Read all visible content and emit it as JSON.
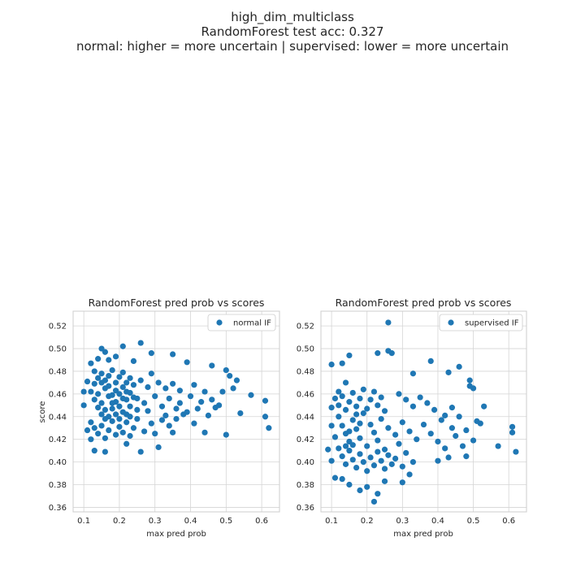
{
  "suptitle": {
    "line1": "high_dim_multiclass",
    "line2": "RandomForest test acc: 0.327",
    "line3": "normal: higher = more uncertain | supervised: lower = more uncertain"
  },
  "colors": {
    "points": "#1f77b4",
    "grid": "#d5d5d5",
    "frame": "#cccccc",
    "text": "#262626"
  },
  "chart_data": [
    {
      "type": "scatter",
      "title": "RandomForest pred prob vs scores",
      "xlabel": "max pred prob",
      "ylabel": "score",
      "xlim": [
        0.07,
        0.65
      ],
      "ylim": [
        0.356,
        0.533
      ],
      "xticks": [
        0.1,
        0.2,
        0.3,
        0.4,
        0.5,
        0.6
      ],
      "xtick_labels": [
        "0.1",
        "0.2",
        "0.3",
        "0.4",
        "0.5",
        "0.6"
      ],
      "yticks": [
        0.36,
        0.38,
        0.4,
        0.42,
        0.44,
        0.46,
        0.48,
        0.5,
        0.52
      ],
      "ytick_labels": [
        "0.36",
        "0.38",
        "0.40",
        "0.42",
        "0.44",
        "0.46",
        "0.48",
        "0.50",
        "0.52"
      ],
      "grid": true,
      "legend": {
        "label": "normal IF",
        "placement": "top-right"
      },
      "series": [
        {
          "name": "normal IF",
          "points": [
            [
              0.11,
              0.471
            ],
            [
              0.12,
              0.487
            ],
            [
              0.13,
              0.48
            ],
            [
              0.14,
              0.491
            ],
            [
              0.15,
              0.5
            ],
            [
              0.16,
              0.497
            ],
            [
              0.17,
              0.49
            ],
            [
              0.19,
              0.493
            ],
            [
              0.21,
              0.502
            ],
            [
              0.26,
              0.505
            ],
            [
              0.24,
              0.489
            ],
            [
              0.29,
              0.496
            ],
            [
              0.35,
              0.495
            ],
            [
              0.39,
              0.488
            ],
            [
              0.46,
              0.485
            ],
            [
              0.5,
              0.481
            ],
            [
              0.51,
              0.476
            ],
            [
              0.53,
              0.472
            ],
            [
              0.52,
              0.465
            ],
            [
              0.49,
              0.462
            ],
            [
              0.57,
              0.459
            ],
            [
              0.61,
              0.454
            ],
            [
              0.62,
              0.43
            ],
            [
              0.61,
              0.44
            ],
            [
              0.54,
              0.443
            ],
            [
              0.5,
              0.424
            ],
            [
              0.44,
              0.426
            ],
            [
              0.41,
              0.434
            ],
            [
              0.38,
              0.442
            ],
            [
              0.35,
              0.426
            ],
            [
              0.31,
              0.413
            ],
            [
              0.26,
              0.409
            ],
            [
              0.22,
              0.416
            ],
            [
              0.16,
              0.409
            ],
            [
              0.13,
              0.41
            ],
            [
              0.12,
              0.42
            ],
            [
              0.11,
              0.428
            ],
            [
              0.1,
              0.45
            ],
            [
              0.1,
              0.462
            ],
            [
              0.12,
              0.462
            ],
            [
              0.13,
              0.455
            ],
            [
              0.14,
              0.448
            ],
            [
              0.15,
              0.442
            ],
            [
              0.16,
              0.465
            ],
            [
              0.17,
              0.458
            ],
            [
              0.18,
              0.447
            ],
            [
              0.19,
              0.453
            ],
            [
              0.2,
              0.46
            ],
            [
              0.21,
              0.444
            ],
            [
              0.22,
              0.455
            ],
            [
              0.23,
              0.449
            ],
            [
              0.24,
              0.457
            ],
            [
              0.25,
              0.446
            ],
            [
              0.27,
              0.452
            ],
            [
              0.28,
              0.445
            ],
            [
              0.3,
              0.458
            ],
            [
              0.32,
              0.449
            ],
            [
              0.33,
              0.441
            ],
            [
              0.34,
              0.456
            ],
            [
              0.36,
              0.447
            ],
            [
              0.37,
              0.452
            ],
            [
              0.39,
              0.444
            ],
            [
              0.4,
              0.458
            ],
            [
              0.42,
              0.447
            ],
            [
              0.43,
              0.453
            ],
            [
              0.45,
              0.441
            ],
            [
              0.46,
              0.455
            ],
            [
              0.47,
              0.448
            ],
            [
              0.48,
              0.45
            ],
            [
              0.44,
              0.462
            ],
            [
              0.13,
              0.469
            ],
            [
              0.14,
              0.474
            ],
            [
              0.15,
              0.478
            ],
            [
              0.16,
              0.472
            ],
            [
              0.17,
              0.476
            ],
            [
              0.18,
              0.481
            ],
            [
              0.19,
              0.47
            ],
            [
              0.2,
              0.475
            ],
            [
              0.21,
              0.479
            ],
            [
              0.22,
              0.47
            ],
            [
              0.23,
              0.474
            ],
            [
              0.24,
              0.468
            ],
            [
              0.26,
              0.472
            ],
            [
              0.28,
              0.466
            ],
            [
              0.29,
              0.478
            ],
            [
              0.31,
              0.47
            ],
            [
              0.33,
              0.465
            ],
            [
              0.35,
              0.469
            ],
            [
              0.37,
              0.463
            ],
            [
              0.41,
              0.468
            ],
            [
              0.12,
              0.435
            ],
            [
              0.13,
              0.43
            ],
            [
              0.14,
              0.425
            ],
            [
              0.15,
              0.432
            ],
            [
              0.16,
              0.421
            ],
            [
              0.17,
              0.428
            ],
            [
              0.18,
              0.436
            ],
            [
              0.19,
              0.424
            ],
            [
              0.2,
              0.431
            ],
            [
              0.21,
              0.426
            ],
            [
              0.22,
              0.435
            ],
            [
              0.23,
              0.423
            ],
            [
              0.24,
              0.43
            ],
            [
              0.25,
              0.438
            ],
            [
              0.27,
              0.427
            ],
            [
              0.29,
              0.434
            ],
            [
              0.3,
              0.425
            ],
            [
              0.32,
              0.437
            ],
            [
              0.34,
              0.432
            ],
            [
              0.36,
              0.438
            ],
            [
              0.14,
              0.46
            ],
            [
              0.15,
              0.452
            ],
            [
              0.16,
              0.446
            ],
            [
              0.17,
              0.44
            ],
            [
              0.18,
              0.459
            ],
            [
              0.19,
              0.442
            ],
            [
              0.2,
              0.449
            ],
            [
              0.21,
              0.456
            ],
            [
              0.22,
              0.462
            ],
            [
              0.23,
              0.44
            ],
            [
              0.15,
              0.47
            ],
            [
              0.16,
              0.438
            ],
            [
              0.17,
              0.467
            ],
            [
              0.18,
              0.452
            ],
            [
              0.19,
              0.463
            ],
            [
              0.2,
              0.438
            ],
            [
              0.21,
              0.466
            ],
            [
              0.22,
              0.442
            ],
            [
              0.23,
              0.461
            ],
            [
              0.25,
              0.456
            ]
          ]
        }
      ]
    },
    {
      "type": "scatter",
      "title": "RandomForest pred prob vs scores",
      "xlabel": "max pred prob",
      "ylabel": "score",
      "xlim": [
        0.07,
        0.65
      ],
      "ylim": [
        0.356,
        0.533
      ],
      "xticks": [
        0.1,
        0.2,
        0.3,
        0.4,
        0.5,
        0.6
      ],
      "xtick_labels": [
        "0.1",
        "0.2",
        "0.3",
        "0.4",
        "0.5",
        "0.6"
      ],
      "yticks": [
        0.36,
        0.38,
        0.4,
        0.42,
        0.44,
        0.46,
        0.48,
        0.5,
        0.52
      ],
      "ytick_labels": [
        "0.36",
        "0.38",
        "0.40",
        "0.42",
        "0.44",
        "0.46",
        "0.48",
        "0.50",
        "0.52"
      ],
      "grid": true,
      "legend": {
        "label": "supervised IF",
        "placement": "top-right"
      },
      "series": [
        {
          "name": "supervised IF",
          "points": [
            [
              0.26,
              0.523
            ],
            [
              0.26,
              0.498
            ],
            [
              0.27,
              0.496
            ],
            [
              0.23,
              0.496
            ],
            [
              0.15,
              0.494
            ],
            [
              0.13,
              0.487
            ],
            [
              0.1,
              0.486
            ],
            [
              0.38,
              0.489
            ],
            [
              0.33,
              0.478
            ],
            [
              0.43,
              0.479
            ],
            [
              0.46,
              0.484
            ],
            [
              0.49,
              0.472
            ],
            [
              0.49,
              0.467
            ],
            [
              0.5,
              0.465
            ],
            [
              0.53,
              0.449
            ],
            [
              0.52,
              0.434
            ],
            [
              0.61,
              0.431
            ],
            [
              0.61,
              0.426
            ],
            [
              0.62,
              0.409
            ],
            [
              0.57,
              0.414
            ],
            [
              0.48,
              0.405
            ],
            [
              0.43,
              0.404
            ],
            [
              0.4,
              0.401
            ],
            [
              0.32,
              0.389
            ],
            [
              0.3,
              0.382
            ],
            [
              0.25,
              0.383
            ],
            [
              0.23,
              0.372
            ],
            [
              0.22,
              0.365
            ],
            [
              0.2,
              0.378
            ],
            [
              0.18,
              0.375
            ],
            [
              0.15,
              0.38
            ],
            [
              0.13,
              0.385
            ],
            [
              0.11,
              0.386
            ],
            [
              0.1,
              0.401
            ],
            [
              0.09,
              0.411
            ],
            [
              0.1,
              0.432
            ],
            [
              0.1,
              0.448
            ],
            [
              0.11,
              0.456
            ],
            [
              0.12,
              0.462
            ],
            [
              0.14,
              0.47
            ],
            [
              0.12,
              0.44
            ],
            [
              0.13,
              0.432
            ],
            [
              0.14,
              0.425
            ],
            [
              0.15,
              0.418
            ],
            [
              0.16,
              0.437
            ],
            [
              0.17,
              0.429
            ],
            [
              0.18,
              0.421
            ],
            [
              0.19,
              0.443
            ],
            [
              0.2,
              0.414
            ],
            [
              0.21,
              0.433
            ],
            [
              0.22,
              0.426
            ],
            [
              0.23,
              0.419
            ],
            [
              0.24,
              0.438
            ],
            [
              0.25,
              0.411
            ],
            [
              0.26,
              0.43
            ],
            [
              0.28,
              0.424
            ],
            [
              0.29,
              0.416
            ],
            [
              0.3,
              0.435
            ],
            [
              0.32,
              0.427
            ],
            [
              0.34,
              0.42
            ],
            [
              0.36,
              0.433
            ],
            [
              0.38,
              0.425
            ],
            [
              0.4,
              0.418
            ],
            [
              0.41,
              0.437
            ],
            [
              0.42,
              0.412
            ],
            [
              0.44,
              0.43
            ],
            [
              0.45,
              0.423
            ],
            [
              0.46,
              0.44
            ],
            [
              0.47,
              0.414
            ],
            [
              0.48,
              0.428
            ],
            [
              0.5,
              0.419
            ],
            [
              0.51,
              0.436
            ],
            [
              0.44,
              0.448
            ],
            [
              0.42,
              0.441
            ],
            [
              0.39,
              0.446
            ],
            [
              0.37,
              0.452
            ],
            [
              0.35,
              0.457
            ],
            [
              0.33,
              0.449
            ],
            [
              0.31,
              0.455
            ],
            [
              0.29,
              0.46
            ],
            [
              0.12,
              0.412
            ],
            [
              0.13,
              0.405
            ],
            [
              0.14,
              0.398
            ],
            [
              0.15,
              0.41
            ],
            [
              0.16,
              0.402
            ],
            [
              0.17,
              0.395
            ],
            [
              0.18,
              0.407
            ],
            [
              0.19,
              0.4
            ],
            [
              0.2,
              0.392
            ],
            [
              0.21,
              0.404
            ],
            [
              0.22,
              0.397
            ],
            [
              0.23,
              0.409
            ],
            [
              0.24,
              0.401
            ],
            [
              0.25,
              0.394
            ],
            [
              0.26,
              0.406
            ],
            [
              0.27,
              0.398
            ],
            [
              0.28,
              0.403
            ],
            [
              0.3,
              0.396
            ],
            [
              0.31,
              0.408
            ],
            [
              0.33,
              0.4
            ],
            [
              0.11,
              0.422
            ],
            [
              0.12,
              0.45
            ],
            [
              0.13,
              0.458
            ],
            [
              0.14,
              0.446
            ],
            [
              0.15,
              0.453
            ],
            [
              0.16,
              0.461
            ],
            [
              0.17,
              0.449
            ],
            [
              0.18,
              0.456
            ],
            [
              0.19,
              0.464
            ],
            [
              0.2,
              0.447
            ],
            [
              0.21,
              0.455
            ],
            [
              0.22,
              0.462
            ],
            [
              0.23,
              0.45
            ],
            [
              0.24,
              0.457
            ],
            [
              0.25,
              0.445
            ],
            [
              0.14,
              0.414
            ],
            [
              0.15,
              0.427
            ],
            [
              0.16,
              0.415
            ],
            [
              0.17,
              0.442
            ],
            [
              0.18,
              0.434
            ]
          ]
        }
      ]
    }
  ]
}
